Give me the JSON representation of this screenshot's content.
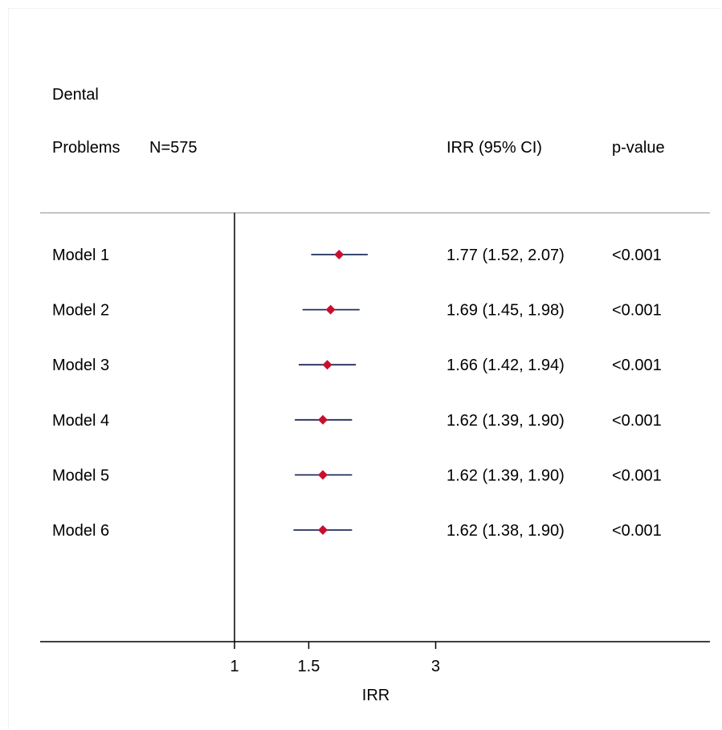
{
  "header": {
    "line1": "Dental",
    "line2": "Problems",
    "n_label": "N=575",
    "ci_header": "IRR (95% CI)",
    "p_header": "p-value"
  },
  "chart_data": {
    "type": "forest",
    "xlabel": "IRR",
    "x_scale": "log",
    "x_ticks": [
      1,
      1.5,
      3
    ],
    "tick_labels": [
      "1",
      "1.5",
      "3"
    ],
    "reference_line": 1,
    "colors": {
      "point": "#c8102e",
      "ci_line": "#1f2d5c",
      "separator": "#b0b0b0",
      "axis": "#000000"
    },
    "rows": [
      {
        "label": "Model 1",
        "irr": 1.77,
        "lo": 1.52,
        "hi": 2.07,
        "ci_text": "1.77 (1.52, 2.07)",
        "p": "<0.001"
      },
      {
        "label": "Model 2",
        "irr": 1.69,
        "lo": 1.45,
        "hi": 1.98,
        "ci_text": "1.69 (1.45, 1.98)",
        "p": "<0.001"
      },
      {
        "label": "Model 3",
        "irr": 1.66,
        "lo": 1.42,
        "hi": 1.94,
        "ci_text": "1.66 (1.42, 1.94)",
        "p": "<0.001"
      },
      {
        "label": "Model 4",
        "irr": 1.62,
        "lo": 1.39,
        "hi": 1.9,
        "ci_text": "1.62 (1.39, 1.90)",
        "p": "<0.001"
      },
      {
        "label": "Model 5",
        "irr": 1.62,
        "lo": 1.39,
        "hi": 1.9,
        "ci_text": "1.62 (1.39, 1.90)",
        "p": "<0.001"
      },
      {
        "label": "Model 6",
        "irr": 1.62,
        "lo": 1.38,
        "hi": 1.9,
        "ci_text": "1.62 (1.38, 1.90)",
        "p": "<0.001"
      }
    ]
  }
}
